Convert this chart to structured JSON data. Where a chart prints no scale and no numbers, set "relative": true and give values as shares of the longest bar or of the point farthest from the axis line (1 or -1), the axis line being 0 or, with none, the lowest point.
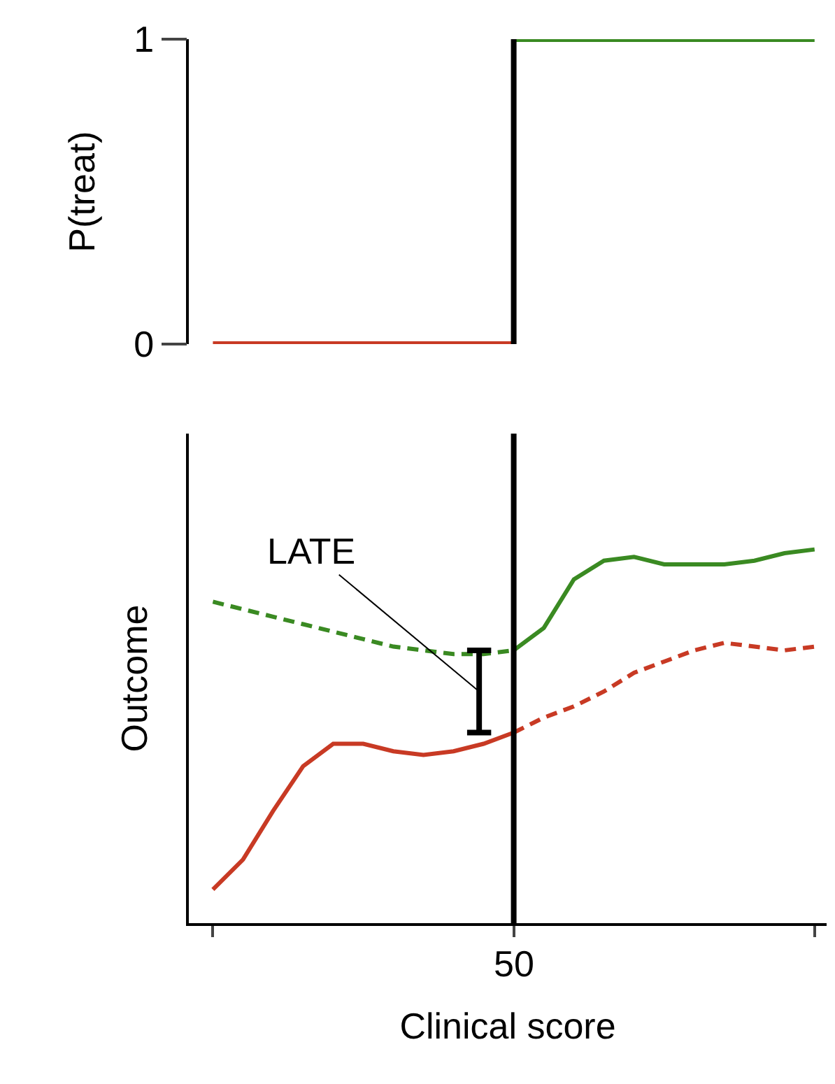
{
  "chart_data": [
    {
      "type": "line",
      "ylabel": "P(treat)",
      "categories": [
        null,
        null,
        null,
        null,
        null,
        null,
        null,
        null,
        null,
        null,
        null,
        null,
        null,
        null,
        null,
        null,
        null,
        null,
        null,
        null,
        null
      ],
      "ylim": [
        0,
        1
      ],
      "yticks": [
        0,
        1
      ],
      "tick_labels": "y",
      "series": [
        {
          "color": "#c83a24",
          "values": [
            0,
            0,
            0,
            0,
            0,
            0,
            0,
            0,
            0,
            0,
            0,
            null,
            null,
            null,
            null,
            null,
            null,
            null,
            null,
            null,
            null
          ]
        },
        {
          "color": "#3a8a22",
          "values": [
            null,
            null,
            null,
            null,
            null,
            null,
            null,
            null,
            null,
            null,
            1,
            1,
            1,
            1,
            1,
            1,
            1,
            1,
            1,
            1,
            1
          ]
        }
      ]
    },
    {
      "type": "line",
      "relative": true,
      "xlabel": "Clinical score",
      "ylabel": "Outcome",
      "categories": [
        null,
        null,
        null,
        null,
        null,
        null,
        null,
        null,
        null,
        null,
        null,
        null,
        null,
        null,
        null,
        null,
        null,
        null,
        null,
        null,
        null
      ],
      "tick_labels": false,
      "series": [
        {
          "color": "#3a8a22",
          "line_style": "solid",
          "values": [
            null,
            null,
            null,
            null,
            null,
            null,
            null,
            null,
            null,
            null,
            0.73,
            0.79,
            0.92,
            0.97,
            0.98,
            0.96,
            0.96,
            0.96,
            0.97,
            0.99,
            1
          ]
        },
        {
          "color": "#3a8a22",
          "line_style": "dashed",
          "values": [
            0.86,
            0.84,
            0.82,
            0.8,
            0.78,
            0.76,
            0.74,
            0.73,
            0.72,
            0.72,
            0.73,
            null,
            null,
            null,
            null,
            null,
            null,
            null,
            null,
            null,
            null
          ]
        },
        {
          "color": "#c83a24",
          "line_style": "solid",
          "values": [
            0.09,
            0.17,
            0.3,
            0.42,
            0.48,
            0.48,
            0.46,
            0.45,
            0.46,
            0.48,
            0.51,
            null,
            null,
            null,
            null,
            null,
            null,
            null,
            null,
            null,
            null
          ]
        },
        {
          "color": "#c83a24",
          "line_style": "dashed",
          "values": [
            null,
            null,
            null,
            null,
            null,
            null,
            null,
            null,
            null,
            null,
            0.51,
            0.55,
            0.58,
            0.62,
            0.67,
            0.7,
            0.73,
            0.75,
            0.74,
            0.73,
            0.74
          ]
        }
      ],
      "annotations": [
        "LATE",
        "50"
      ]
    }
  ]
}
